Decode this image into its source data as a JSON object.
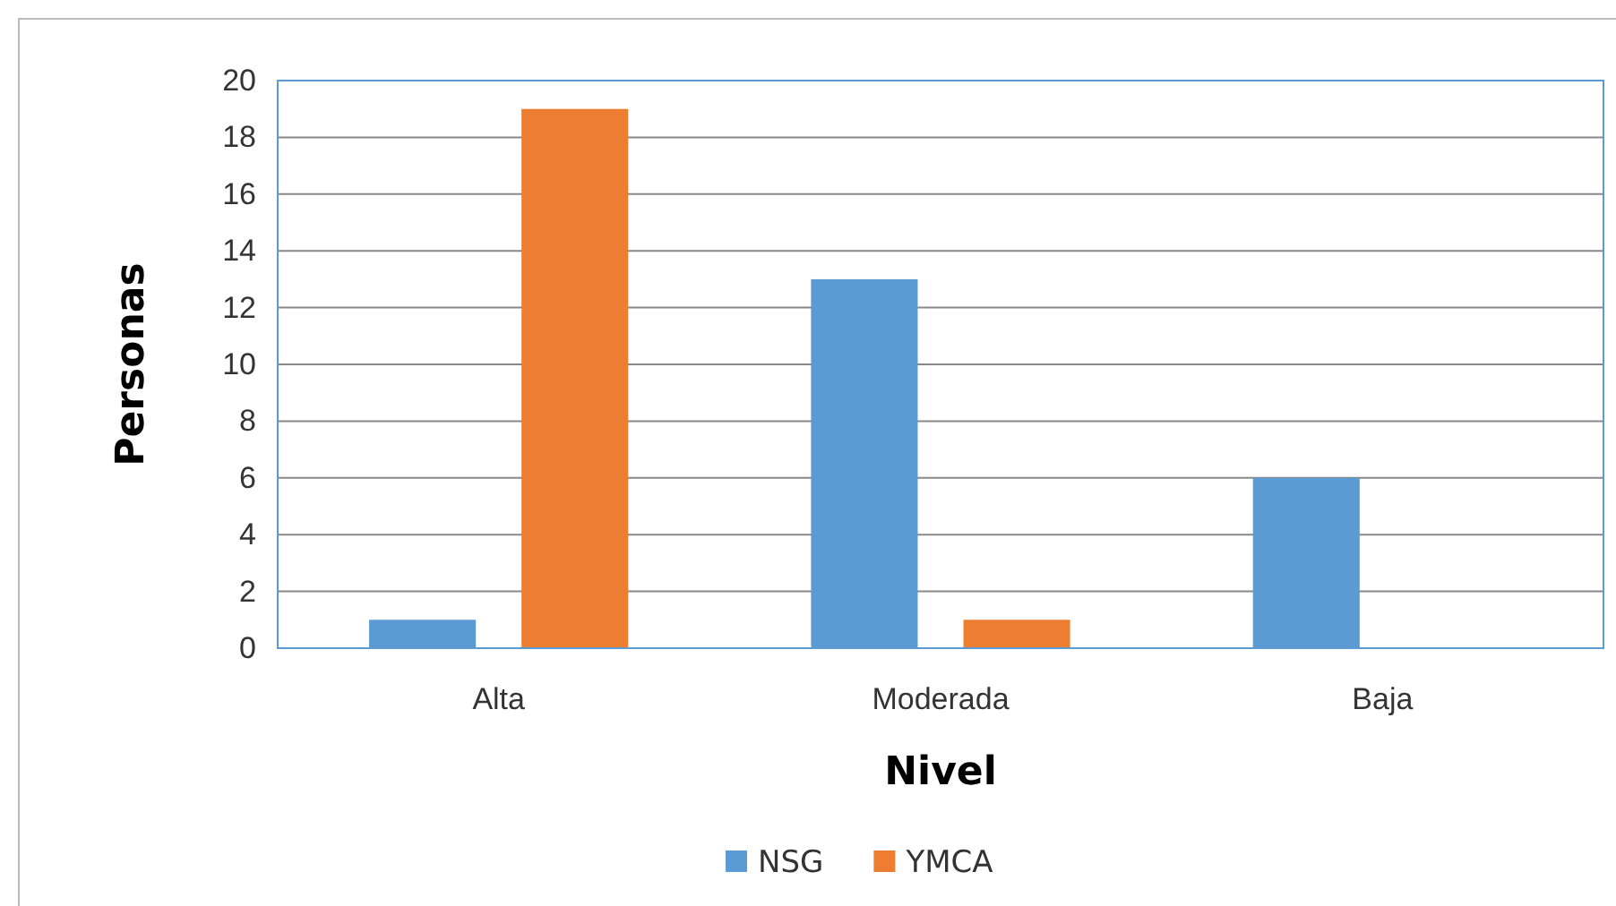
{
  "chart_data": {
    "type": "bar",
    "xlabel": "Nivel",
    "ylabel": "Personas",
    "categories": [
      "Alta",
      "Moderada",
      "Baja"
    ],
    "series": [
      {
        "name": "NSG",
        "color": "#5b9bd5",
        "values": [
          1,
          13,
          6
        ]
      },
      {
        "name": "YMCA",
        "color": "#ed7d31",
        "values": [
          19,
          1,
          0
        ]
      }
    ],
    "ylim": [
      0,
      20
    ],
    "yticks": [
      0,
      2,
      4,
      6,
      8,
      10,
      12,
      14,
      16,
      18,
      20
    ],
    "grid": "y",
    "legend": "bottom"
  }
}
